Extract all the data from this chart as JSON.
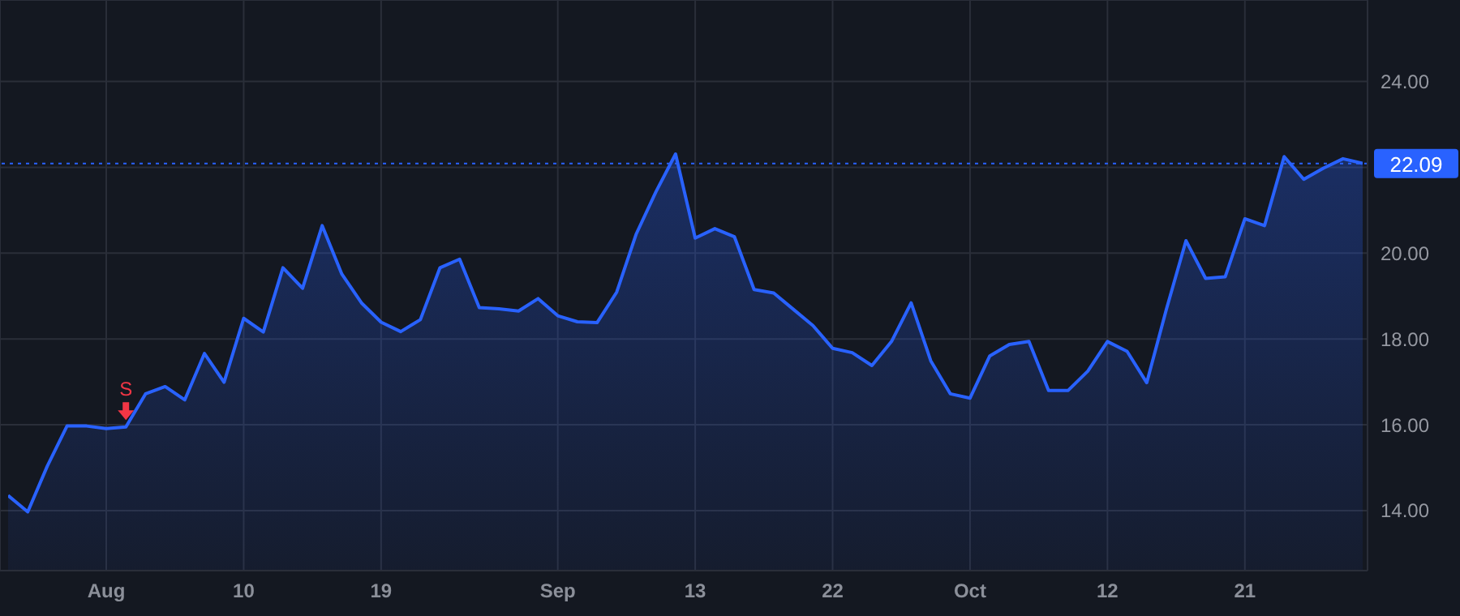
{
  "chart_data": {
    "type": "area",
    "categories": [
      null,
      null,
      null,
      null,
      null,
      "Aug",
      null,
      null,
      null,
      null,
      null,
      null,
      "10",
      null,
      null,
      null,
      null,
      null,
      null,
      "19",
      null,
      null,
      null,
      null,
      null,
      null,
      null,
      null,
      "Sep",
      null,
      null,
      null,
      null,
      null,
      null,
      "13",
      null,
      null,
      null,
      null,
      null,
      null,
      "22",
      null,
      null,
      null,
      null,
      null,
      null,
      "Oct",
      null,
      null,
      null,
      null,
      null,
      null,
      "12",
      null,
      null,
      null,
      null,
      null,
      null,
      "21",
      null,
      null,
      null,
      null,
      null,
      null
    ],
    "series": [
      {
        "color": "#2962ff",
        "values": [
          14.35,
          13.97,
          15.04,
          15.97,
          15.97,
          15.91,
          15.95,
          16.72,
          16.89,
          16.58,
          17.66,
          16.99,
          18.48,
          18.16,
          19.66,
          19.18,
          20.64,
          19.51,
          18.84,
          18.39,
          18.17,
          18.45,
          19.66,
          19.86,
          18.73,
          18.7,
          18.65,
          18.94,
          18.54,
          18.4,
          18.38,
          19.09,
          20.45,
          21.43,
          22.31,
          20.35,
          20.57,
          20.38,
          19.15,
          19.07,
          18.69,
          18.31,
          17.78,
          17.68,
          17.38,
          17.94,
          18.84,
          17.49,
          16.72,
          16.62,
          17.6,
          17.87,
          17.94,
          16.8,
          16.8,
          17.25,
          17.94,
          17.71,
          16.98,
          18.69,
          20.29,
          19.41,
          19.45,
          20.8,
          20.64,
          22.25,
          21.72,
          21.98,
          22.2,
          22.09
        ]
      },
      {
        "type": "scatter",
        "color": "#f23645",
        "values": [
          null,
          null,
          null,
          null,
          null,
          null,
          16.3,
          null,
          null,
          null,
          null,
          null,
          null,
          null,
          null,
          null,
          null,
          null,
          null,
          null,
          null,
          null,
          null,
          null,
          null,
          null,
          null,
          null,
          null,
          null,
          null,
          null,
          null,
          null,
          null,
          null,
          null,
          null,
          null,
          null,
          null,
          null,
          null,
          null,
          null,
          null,
          null,
          null,
          null,
          null,
          null,
          null,
          null,
          null,
          null,
          null,
          null,
          null,
          null,
          null,
          null,
          null,
          null,
          null,
          null,
          null,
          null,
          null,
          null,
          null
        ]
      }
    ],
    "ylim": [
      12.6,
      25.9
    ],
    "yticks": [
      {
        "value": 14,
        "label": "14.00"
      },
      {
        "value": 16,
        "label": "16.00"
      },
      {
        "value": 18,
        "label": "18.00"
      },
      {
        "value": 20,
        "label": "20.00"
      },
      {
        "value": 22,
        "label": null
      },
      {
        "value": 24,
        "label": "24.00"
      }
    ],
    "ref_lines": [
      {
        "axis": "y",
        "value": 22.09,
        "label": "22.09",
        "color": "#2962ff",
        "line_style": "dotted"
      }
    ],
    "annotations": [
      "S"
    ],
    "grid": true,
    "marker": "none",
    "line_style": "solid"
  }
}
